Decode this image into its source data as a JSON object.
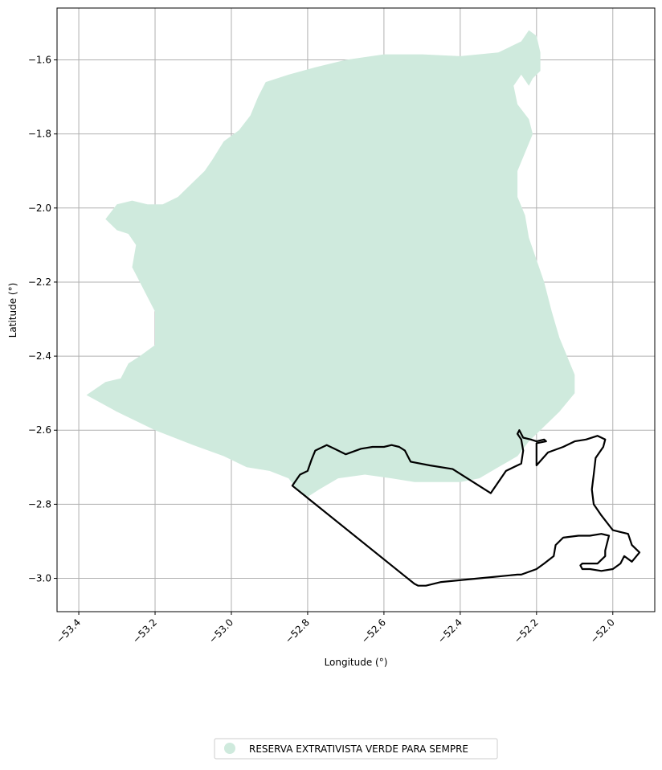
{
  "chart_data": {
    "type": "map",
    "xlabel": "Longitude (°)",
    "ylabel": "Latitude (°)",
    "xlim": [
      -53.457,
      -51.89
    ],
    "ylim": [
      -3.09,
      -1.46
    ],
    "xticks": [
      -53.4,
      -53.2,
      -53.0,
      -52.8,
      -52.6,
      -52.4,
      -52.2,
      -52.0
    ],
    "yticks": [
      -1.6,
      -1.8,
      -2.0,
      -2.2,
      -2.4,
      -2.6,
      -2.8,
      -3.0
    ],
    "xtick_labels": [
      "−53.4",
      "−53.2",
      "−53.0",
      "−52.8",
      "−52.6",
      "−52.4",
      "−52.2",
      "−52.0"
    ],
    "ytick_labels": [
      "−1.6",
      "−1.8",
      "−2.0",
      "−2.2",
      "−2.4",
      "−2.6",
      "−2.8",
      "−3.0"
    ],
    "grid": true,
    "legend_position": "bottom-center",
    "legend": [
      {
        "label": "RESERVA EXTRATIVISTA VERDE PARA SEMPRE",
        "color": "#cfeadd",
        "marker": "circle"
      }
    ],
    "colors": {
      "region_fill": "#cfeadd",
      "boundary_stroke": "#000000",
      "grid": "#b0b0b0"
    },
    "filled_region": [
      [
        -53.38,
        -2.505
      ],
      [
        -53.33,
        -2.47
      ],
      [
        -53.29,
        -2.46
      ],
      [
        -53.27,
        -2.42
      ],
      [
        -53.24,
        -2.4
      ],
      [
        -53.2,
        -2.37
      ],
      [
        -53.2,
        -2.32
      ],
      [
        -53.2,
        -2.28
      ],
      [
        -53.22,
        -2.24
      ],
      [
        -53.24,
        -2.2
      ],
      [
        -53.26,
        -2.16
      ],
      [
        -53.25,
        -2.1
      ],
      [
        -53.27,
        -2.07
      ],
      [
        -53.3,
        -2.06
      ],
      [
        -53.33,
        -2.03
      ],
      [
        -53.3,
        -1.99
      ],
      [
        -53.26,
        -1.98
      ],
      [
        -53.22,
        -1.99
      ],
      [
        -53.18,
        -1.99
      ],
      [
        -53.14,
        -1.97
      ],
      [
        -53.1,
        -1.93
      ],
      [
        -53.07,
        -1.9
      ],
      [
        -53.05,
        -1.87
      ],
      [
        -53.02,
        -1.82
      ],
      [
        -52.98,
        -1.79
      ],
      [
        -52.95,
        -1.75
      ],
      [
        -52.93,
        -1.7
      ],
      [
        -52.91,
        -1.66
      ],
      [
        -52.85,
        -1.64
      ],
      [
        -52.78,
        -1.62
      ],
      [
        -52.7,
        -1.6
      ],
      [
        -52.6,
        -1.585
      ],
      [
        -52.5,
        -1.585
      ],
      [
        -52.4,
        -1.59
      ],
      [
        -52.3,
        -1.58
      ],
      [
        -52.24,
        -1.55
      ],
      [
        -52.22,
        -1.52
      ],
      [
        -52.2,
        -1.535
      ],
      [
        -52.19,
        -1.58
      ],
      [
        -52.19,
        -1.63
      ],
      [
        -52.21,
        -1.65
      ],
      [
        -52.22,
        -1.67
      ],
      [
        -52.24,
        -1.64
      ],
      [
        -52.26,
        -1.67
      ],
      [
        -52.25,
        -1.72
      ],
      [
        -52.22,
        -1.76
      ],
      [
        -52.21,
        -1.8
      ],
      [
        -52.23,
        -1.85
      ],
      [
        -52.25,
        -1.9
      ],
      [
        -52.25,
        -1.97
      ],
      [
        -52.23,
        -2.02
      ],
      [
        -52.22,
        -2.08
      ],
      [
        -52.2,
        -2.14
      ],
      [
        -52.18,
        -2.2
      ],
      [
        -52.16,
        -2.28
      ],
      [
        -52.14,
        -2.35
      ],
      [
        -52.12,
        -2.4
      ],
      [
        -52.1,
        -2.45
      ],
      [
        -52.1,
        -2.5
      ],
      [
        -52.14,
        -2.55
      ],
      [
        -52.18,
        -2.59
      ],
      [
        -52.22,
        -2.63
      ],
      [
        -52.25,
        -2.67
      ],
      [
        -52.3,
        -2.7
      ],
      [
        -52.35,
        -2.73
      ],
      [
        -52.4,
        -2.74
      ],
      [
        -52.45,
        -2.74
      ],
      [
        -52.52,
        -2.74
      ],
      [
        -52.58,
        -2.73
      ],
      [
        -52.65,
        -2.72
      ],
      [
        -52.72,
        -2.73
      ],
      [
        -52.77,
        -2.76
      ],
      [
        -52.8,
        -2.78
      ],
      [
        -52.82,
        -2.77
      ],
      [
        -52.85,
        -2.73
      ],
      [
        -52.9,
        -2.71
      ],
      [
        -52.96,
        -2.7
      ],
      [
        -53.02,
        -2.67
      ],
      [
        -53.1,
        -2.64
      ],
      [
        -53.2,
        -2.6
      ],
      [
        -53.3,
        -2.55
      ],
      [
        -53.38,
        -2.505
      ]
    ],
    "boundary_line": [
      [
        -52.84,
        -2.75
      ],
      [
        -52.82,
        -2.72
      ],
      [
        -52.8,
        -2.71
      ],
      [
        -52.79,
        -2.68
      ],
      [
        -52.78,
        -2.655
      ],
      [
        -52.77,
        -2.65
      ],
      [
        -52.75,
        -2.64
      ],
      [
        -52.73,
        -2.65
      ],
      [
        -52.7,
        -2.665
      ],
      [
        -52.66,
        -2.65
      ],
      [
        -52.63,
        -2.645
      ],
      [
        -52.6,
        -2.645
      ],
      [
        -52.58,
        -2.64
      ],
      [
        -52.56,
        -2.645
      ],
      [
        -52.545,
        -2.655
      ],
      [
        -52.53,
        -2.685
      ],
      [
        -52.48,
        -2.695
      ],
      [
        -52.42,
        -2.705
      ],
      [
        -52.32,
        -2.77
      ],
      [
        -52.3,
        -2.74
      ],
      [
        -52.28,
        -2.71
      ],
      [
        -52.26,
        -2.7
      ],
      [
        -52.24,
        -2.69
      ],
      [
        -52.235,
        -2.655
      ],
      [
        -52.24,
        -2.625
      ],
      [
        -52.25,
        -2.61
      ],
      [
        -52.245,
        -2.6
      ],
      [
        -52.235,
        -2.62
      ],
      [
        -52.215,
        -2.625
      ],
      [
        -52.2,
        -2.63
      ],
      [
        -52.18,
        -2.625
      ],
      [
        -52.175,
        -2.63
      ],
      [
        -52.2,
        -2.635
      ],
      [
        -52.2,
        -2.695
      ],
      [
        -52.17,
        -2.66
      ],
      [
        -52.13,
        -2.645
      ],
      [
        -52.1,
        -2.63
      ],
      [
        -52.07,
        -2.625
      ],
      [
        -52.04,
        -2.615
      ],
      [
        -52.02,
        -2.625
      ],
      [
        -52.025,
        -2.645
      ],
      [
        -52.045,
        -2.675
      ],
      [
        -52.05,
        -2.72
      ],
      [
        -52.055,
        -2.76
      ],
      [
        -52.05,
        -2.8
      ],
      [
        -52.03,
        -2.83
      ],
      [
        -52.0,
        -2.87
      ],
      [
        -51.98,
        -2.875
      ],
      [
        -51.96,
        -2.88
      ],
      [
        -51.95,
        -2.91
      ],
      [
        -51.93,
        -2.93
      ],
      [
        -51.95,
        -2.955
      ],
      [
        -51.97,
        -2.94
      ],
      [
        -51.98,
        -2.96
      ],
      [
        -52.0,
        -2.975
      ],
      [
        -52.03,
        -2.98
      ],
      [
        -52.06,
        -2.975
      ],
      [
        -52.08,
        -2.975
      ],
      [
        -52.085,
        -2.965
      ],
      [
        -52.08,
        -2.96
      ],
      [
        -52.04,
        -2.96
      ],
      [
        -52.02,
        -2.94
      ],
      [
        -52.02,
        -2.925
      ],
      [
        -52.01,
        -2.885
      ],
      [
        -52.03,
        -2.88
      ],
      [
        -52.06,
        -2.885
      ],
      [
        -52.09,
        -2.885
      ],
      [
        -52.13,
        -2.89
      ],
      [
        -52.15,
        -2.91
      ],
      [
        -52.155,
        -2.94
      ],
      [
        -52.18,
        -2.96
      ],
      [
        -52.2,
        -2.975
      ],
      [
        -52.24,
        -2.99
      ],
      [
        -52.25,
        -2.99
      ],
      [
        -52.35,
        -3.0
      ],
      [
        -52.45,
        -3.01
      ],
      [
        -52.49,
        -3.02
      ],
      [
        -52.51,
        -3.02
      ],
      [
        -52.52,
        -3.015
      ],
      [
        -52.84,
        -2.75
      ]
    ]
  },
  "legend": {
    "label": "RESERVA EXTRATIVISTA VERDE PARA SEMPRE"
  }
}
